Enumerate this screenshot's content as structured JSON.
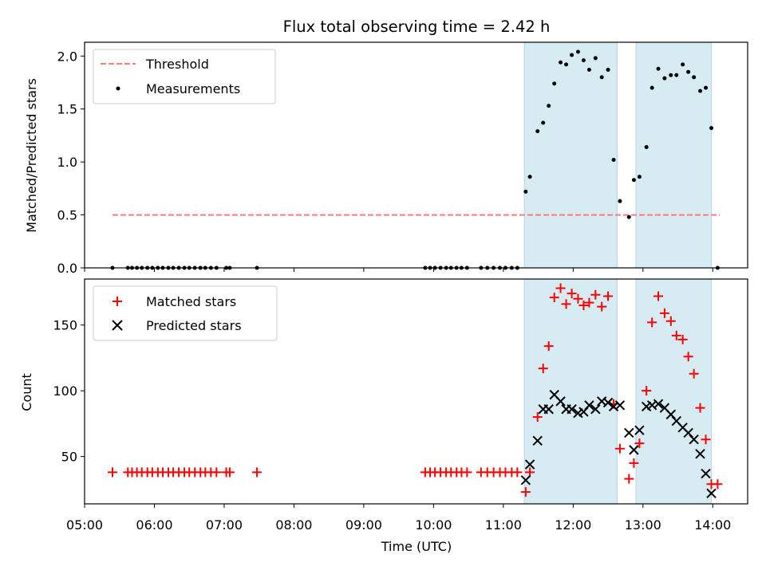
{
  "chart_data": {
    "type": "scatter",
    "title": "Flux total observing time = 2.42 h",
    "xlabel": "Time (UTC)",
    "xlim": [
      5.0,
      14.5
    ],
    "xticks": [
      5,
      6,
      7,
      8,
      9,
      10,
      11,
      12,
      13,
      14
    ],
    "xtick_labels": [
      "05:00",
      "06:00",
      "07:00",
      "08:00",
      "09:00",
      "10:00",
      "11:00",
      "12:00",
      "13:00",
      "14:00"
    ],
    "shaded_intervals": [
      [
        11.3,
        12.63
      ],
      [
        12.9,
        13.98
      ]
    ],
    "panels": [
      {
        "ylabel": "Matched/Predicted stars",
        "ylim": [
          0,
          2.13
        ],
        "yticks": [
          0.0,
          0.5,
          1.0,
          1.5,
          2.0
        ],
        "ytick_labels": [
          "0.0",
          "0.5",
          "1.0",
          "1.5",
          "2.0"
        ],
        "legend": [
          "Threshold",
          "Measurements"
        ],
        "threshold": {
          "name": "Threshold",
          "value": 0.5,
          "x_range": [
            5.4,
            14.1
          ]
        },
        "series": [
          {
            "name": "Measurements",
            "x": [
              5.4,
              5.62,
              5.68,
              5.75,
              5.82,
              5.9,
              5.97,
              6.05,
              6.12,
              6.2,
              6.27,
              6.35,
              6.43,
              6.5,
              6.58,
              6.66,
              6.73,
              6.81,
              6.89,
              7.03,
              7.08,
              7.47,
              9.88,
              9.95,
              10.02,
              10.1,
              10.18,
              10.25,
              10.33,
              10.4,
              10.48,
              10.68,
              10.77,
              10.86,
              10.95,
              11.03,
              11.12,
              11.2,
              11.32,
              11.38,
              11.49,
              11.57,
              11.65,
              11.73,
              11.82,
              11.9,
              11.98,
              12.07,
              12.15,
              12.23,
              12.32,
              12.41,
              12.5,
              12.58,
              12.67,
              12.8,
              12.87,
              12.95,
              13.05,
              13.13,
              13.22,
              13.31,
              13.4,
              13.48,
              13.57,
              13.65,
              13.73,
              13.82,
              13.9,
              13.98,
              14.07
            ],
            "y": [
              0.0,
              0.0,
              0.0,
              0.0,
              0.0,
              0.0,
              0.0,
              0.0,
              0.0,
              0.0,
              0.0,
              0.0,
              0.0,
              0.0,
              0.0,
              0.0,
              0.0,
              0.0,
              0.0,
              0.0,
              0.0,
              0.0,
              0.0,
              0.0,
              0.0,
              0.0,
              0.0,
              0.0,
              0.0,
              0.0,
              0.0,
              0.0,
              0.0,
              0.0,
              0.0,
              0.0,
              0.0,
              0.0,
              0.72,
              0.86,
              1.29,
              1.37,
              1.53,
              1.74,
              1.94,
              1.92,
              2.01,
              2.04,
              1.96,
              1.87,
              1.98,
              1.8,
              1.87,
              1.02,
              0.63,
              0.48,
              0.83,
              0.86,
              1.14,
              1.7,
              1.88,
              1.79,
              1.82,
              1.82,
              1.92,
              1.85,
              1.8,
              1.67,
              1.7,
              1.32,
              0.0
            ]
          }
        ]
      },
      {
        "ylabel": "Count",
        "ylim": [
          14,
          185
        ],
        "yticks": [
          50,
          100,
          150
        ],
        "ytick_labels": [
          "50",
          "100",
          "150"
        ],
        "legend": [
          "Matched stars",
          "Predicted stars"
        ],
        "series": [
          {
            "name": "Matched stars",
            "color": "#ff0000",
            "marker": "+",
            "x": [
              5.4,
              5.62,
              5.68,
              5.75,
              5.82,
              5.9,
              5.97,
              6.05,
              6.12,
              6.2,
              6.27,
              6.35,
              6.43,
              6.5,
              6.58,
              6.66,
              6.73,
              6.81,
              6.89,
              7.03,
              7.08,
              7.47,
              9.88,
              9.95,
              10.02,
              10.1,
              10.18,
              10.25,
              10.33,
              10.4,
              10.48,
              10.68,
              10.77,
              10.86,
              10.95,
              11.03,
              11.12,
              11.2,
              11.32,
              11.38,
              11.49,
              11.57,
              11.65,
              11.73,
              11.82,
              11.9,
              11.98,
              12.07,
              12.15,
              12.23,
              12.32,
              12.41,
              12.5,
              12.58,
              12.67,
              12.8,
              12.87,
              12.95,
              13.05,
              13.13,
              13.22,
              13.31,
              13.4,
              13.48,
              13.57,
              13.65,
              13.73,
              13.82,
              13.9,
              13.98,
              14.07
            ],
            "y": [
              38,
              38,
              38,
              38,
              38,
              38,
              38,
              38,
              38,
              38,
              38,
              38,
              38,
              38,
              38,
              38,
              38,
              38,
              38,
              38,
              38,
              38,
              38,
              38,
              38,
              38,
              38,
              38,
              38,
              38,
              38,
              38,
              38,
              38,
              38,
              38,
              38,
              38,
              23,
              38,
              80,
              117,
              134,
              171,
              178,
              166,
              174,
              170,
              165,
              167,
              173,
              164,
              172,
              90,
              56,
              33,
              45,
              60,
              100,
              152,
              172,
              159,
              153,
              142,
              139,
              126,
              113,
              87,
              63,
              29,
              29
            ]
          },
          {
            "name": "Predicted stars",
            "color": "#000000",
            "marker": "x",
            "x": [
              11.32,
              11.38,
              11.49,
              11.57,
              11.65,
              11.73,
              11.82,
              11.9,
              11.98,
              12.07,
              12.15,
              12.23,
              12.32,
              12.41,
              12.5,
              12.58,
              12.67,
              12.8,
              12.87,
              12.95,
              13.05,
              13.13,
              13.22,
              13.31,
              13.4,
              13.48,
              13.57,
              13.65,
              13.73,
              13.82,
              13.9,
              13.98
            ],
            "y": [
              32,
              44,
              62,
              86,
              86,
              97,
              92,
              86,
              86,
              83,
              84,
              89,
              86,
              92,
              91,
              88,
              89,
              68,
              55,
              70,
              88,
              89,
              90,
              87,
              82,
              77,
              72,
              68,
              63,
              52,
              37,
              22
            ]
          }
        ]
      }
    ]
  }
}
